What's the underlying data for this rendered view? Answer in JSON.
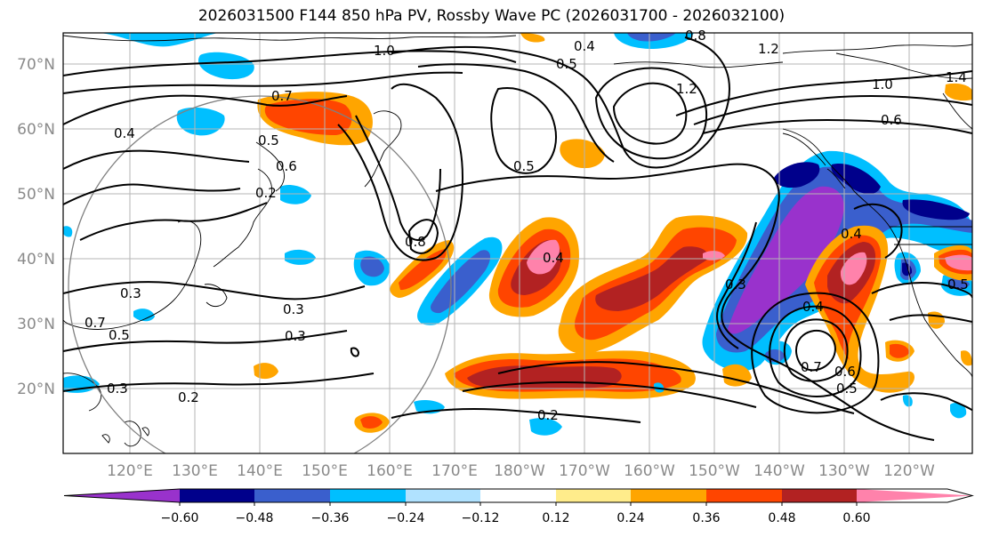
{
  "title": "2026031500 F144 850 hPa PV, Rossby Wave PC (2026031700 - 2026032100)",
  "latitude_labels": [
    "70°N",
    "60°N",
    "50°N",
    "40°N",
    "30°N",
    "20°N"
  ],
  "longitude_labels": [
    "120°E",
    "130°E",
    "140°E",
    "150°E",
    "160°E",
    "170°E",
    "180°W",
    "170°W",
    "160°W",
    "150°W",
    "140°W",
    "130°W",
    "120°W"
  ],
  "colorbar": {
    "tick_labels": [
      "−0.60",
      "−0.48",
      "−0.36",
      "−0.24",
      "−0.12",
      "0.12",
      "0.24",
      "0.36",
      "0.48",
      "0.60"
    ],
    "colors": [
      "#9932cc",
      "#00008b",
      "#3a5fcd",
      "#00bfff",
      "#b0e2ff",
      "#ffffff",
      "#ffec8b",
      "#ffa500",
      "#ff4500",
      "#b22222",
      "#ff82ab"
    ]
  },
  "contour_labels": [
    "1.0",
    "0.4",
    "0.5",
    "0.8",
    "1.2",
    "1.2",
    "1.0",
    "1.4",
    "0.6",
    "0.7",
    "0.5",
    "0.6",
    "0.2",
    "0.5",
    "0.4",
    "0.8",
    "0.4",
    "0.3",
    "0.4",
    "0.3",
    "0.4",
    "0.3",
    "0.3",
    "0.5",
    "0.7",
    "0.6",
    "0.5",
    "0.2",
    "0.2",
    "0.3",
    "0.7",
    "0.5"
  ]
}
